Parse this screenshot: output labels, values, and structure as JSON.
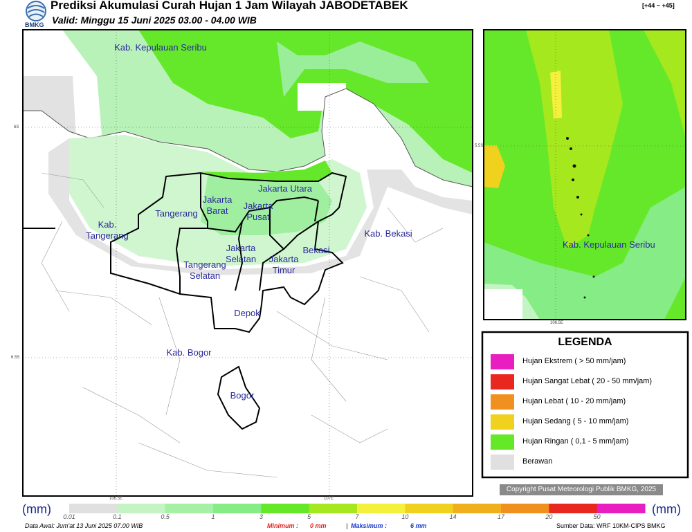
{
  "header": {
    "logo": "BMKG",
    "title": "Prediksi Akumulasi Curah Hujan 1 Jam Wilayah JABODETABEK",
    "valid": "Valid: Minggu 15 Juni 2025 03.00 - 04.00 WIB",
    "range": "[+44 ~ +45]"
  },
  "map": {
    "labels": [
      "Kab. Kepulauan Seribu",
      "Jakarta Utara",
      "Jakarta Barat",
      "Jakarta Pusat",
      "Tangerang",
      "Kab. Tangerang",
      "Jakarta Selatan",
      "Jakarta Timur",
      "Bekasi",
      "Kab. Bekasi",
      "Tangerang Selatan",
      "Depok",
      "Kab. Bogor",
      "Bogor"
    ],
    "grid_labels": [
      "6S",
      "6.5S",
      "106.5E",
      "107E"
    ]
  },
  "inset": {
    "label": "Kab. Kepulauan Seribu",
    "grid_labels": [
      "5.5S",
      "106.5E"
    ]
  },
  "legend": {
    "title": "LEGENDA",
    "items": [
      {
        "label": "Hujan Ekstrem ( > 50 mm/jam)",
        "color": "#e81ec0"
      },
      {
        "label": "Hujan Sangat Lebat ( 20 - 50 mm/jam)",
        "color": "#e8281e"
      },
      {
        "label": "Hujan Lebat ( 10 - 20 mm/jam)",
        "color": "#f0901e"
      },
      {
        "label": "Hujan Sedang ( 5 - 10 mm/jam)",
        "color": "#f0d21e"
      },
      {
        "label": "Hujan Ringan ( 0,1 - 5 mm/jam)",
        "color": "#64e828"
      },
      {
        "label": "Berawan",
        "color": "#e0e0e0"
      }
    ]
  },
  "copyright": "Copyright Pusat Meteorologi Publik BMKG, 2025",
  "colorbar": {
    "unit": "(mm)",
    "ticks": [
      "0.01",
      "0.1",
      "0.5",
      "1",
      "3",
      "5",
      "7",
      "10",
      "14",
      "17",
      "20",
      "50"
    ],
    "colors": [
      "#e0e0e0",
      "#c4f4c4",
      "#a4f0a4",
      "#86ec86",
      "#64e828",
      "#a6e81e",
      "#f4f03c",
      "#f0d21e",
      "#f0b01e",
      "#f0901e",
      "#e8281e",
      "#e81ec0"
    ]
  },
  "footer": {
    "source_init": "Data Awal: Jum'at 13 Juni 2025 07.00 WIB",
    "min_label": "Minimum :",
    "min_value": "0 mm",
    "separator": "|",
    "max_label": "Maksimum :",
    "max_value": "6 mm",
    "source": "Sumber Data: WRF 10KM-CIPS BMKG"
  }
}
